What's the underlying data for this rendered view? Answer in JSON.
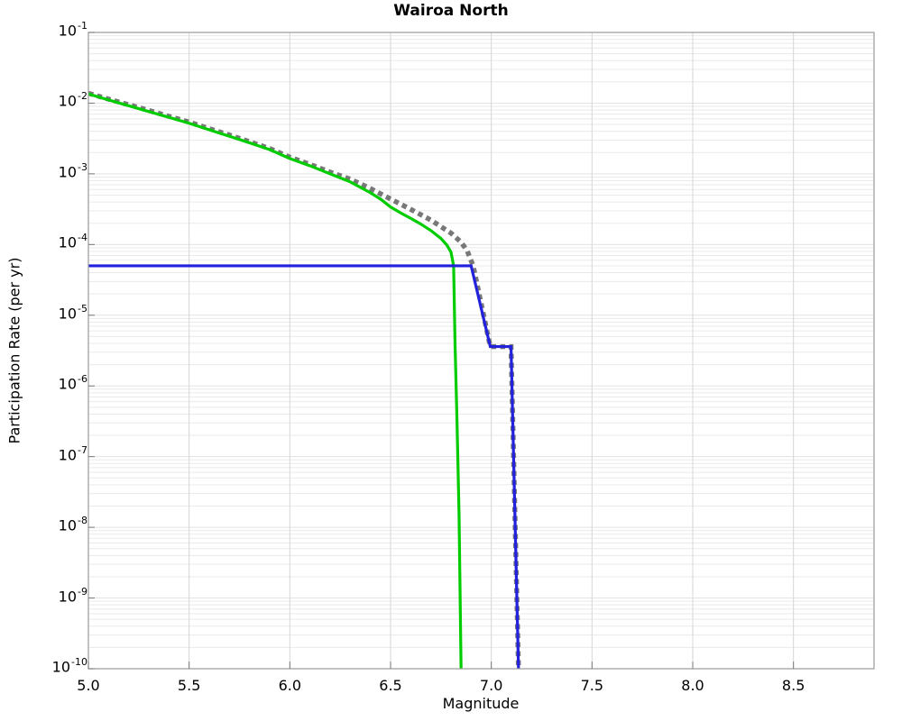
{
  "title": "Wairoa North",
  "axes": {
    "xlabel": "Magnitude",
    "ylabel": "Participation Rate (per yr)",
    "x_range": [
      5.0,
      8.9
    ],
    "y_range_exponents": [
      -1,
      -10
    ],
    "x_ticks": [
      {
        "value": 5.0,
        "label": "5.0"
      },
      {
        "value": 5.5,
        "label": "5.5"
      },
      {
        "value": 6.0,
        "label": "6.0"
      },
      {
        "value": 6.5,
        "label": "6.5"
      },
      {
        "value": 7.0,
        "label": "7.0"
      },
      {
        "value": 7.5,
        "label": "7.5"
      },
      {
        "value": 8.0,
        "label": "8.0"
      },
      {
        "value": 8.5,
        "label": "8.5"
      }
    ],
    "y_ticks": [
      {
        "exponent": -1,
        "base": "10",
        "sup": "-1"
      },
      {
        "exponent": -2,
        "base": "10",
        "sup": "-2"
      },
      {
        "exponent": -3,
        "base": "10",
        "sup": "-3"
      },
      {
        "exponent": -4,
        "base": "10",
        "sup": "-4"
      },
      {
        "exponent": -5,
        "base": "10",
        "sup": "-5"
      },
      {
        "exponent": -6,
        "base": "10",
        "sup": "-6"
      },
      {
        "exponent": -7,
        "base": "10",
        "sup": "-7"
      },
      {
        "exponent": -8,
        "base": "10",
        "sup": "-8"
      },
      {
        "exponent": -9,
        "base": "10",
        "sup": "-9"
      },
      {
        "exponent": -10,
        "base": "10",
        "sup": "-10"
      }
    ]
  },
  "colors": {
    "background": "#ffffff",
    "text": "#000000",
    "frame": "#9a9a9a",
    "tick": "#777777",
    "grid_vertical": "#d6d6d6",
    "grid_major_horizontal": "#e3e3e3",
    "grid_minor_horizontal": "#eaeaea",
    "series_gray": "#787878",
    "series_green": "#00cc00",
    "series_blue": "#2222dd"
  },
  "chart_data": {
    "type": "line",
    "title": "Wairoa North",
    "xlabel": "Magnitude",
    "ylabel": "Participation Rate (per yr)",
    "x_range": [
      5.0,
      8.9
    ],
    "y_range": [
      1e-10,
      0.1
    ],
    "y_scale": "log",
    "grid": true,
    "legend": false,
    "series": [
      {
        "name": "gray-dotted-total",
        "color": "#787878",
        "style": "dashed",
        "width": 5.5,
        "points": [
          [
            5.0,
            0.0138
          ],
          [
            5.1,
            0.0114
          ],
          [
            5.2,
            0.0095
          ],
          [
            5.3,
            0.0079
          ],
          [
            5.4,
            0.0065
          ],
          [
            5.5,
            0.0054
          ],
          [
            5.6,
            0.00435
          ],
          [
            5.7,
            0.00355
          ],
          [
            5.8,
            0.00285
          ],
          [
            5.9,
            0.00228
          ],
          [
            6.0,
            0.00172
          ],
          [
            6.1,
            0.00136
          ],
          [
            6.2,
            0.00106
          ],
          [
            6.3,
            0.00084
          ],
          [
            6.4,
            0.00062
          ],
          [
            6.5,
            0.00044
          ],
          [
            6.6,
            0.000315
          ],
          [
            6.7,
            0.000222
          ],
          [
            6.8,
            0.000145
          ],
          [
            6.85,
            0.000108
          ],
          [
            6.88,
            8.2e-05
          ],
          [
            6.91,
            5e-05
          ],
          [
            6.995,
            3.6e-06
          ],
          [
            7.098,
            3.6e-06
          ],
          [
            7.135,
            1e-10
          ]
        ]
      },
      {
        "name": "green-solid",
        "color": "#00cc00",
        "style": "solid",
        "width": 3.2,
        "points": [
          [
            5.0,
            0.0135
          ],
          [
            5.1,
            0.0111
          ],
          [
            5.2,
            0.0092
          ],
          [
            5.3,
            0.0076
          ],
          [
            5.4,
            0.0063
          ],
          [
            5.5,
            0.0052
          ],
          [
            5.6,
            0.0042
          ],
          [
            5.7,
            0.0034
          ],
          [
            5.8,
            0.00275
          ],
          [
            5.9,
            0.0022
          ],
          [
            6.0,
            0.00165
          ],
          [
            6.1,
            0.0013
          ],
          [
            6.2,
            0.001
          ],
          [
            6.3,
            0.00077
          ],
          [
            6.4,
            0.00054
          ],
          [
            6.45,
            0.00044
          ],
          [
            6.5,
            0.00034
          ],
          [
            6.55,
            0.00028
          ],
          [
            6.6,
            0.000235
          ],
          [
            6.65,
            0.000195
          ],
          [
            6.7,
            0.000158
          ],
          [
            6.75,
            0.000122
          ],
          [
            6.78,
            9.8e-05
          ],
          [
            6.8,
            7.8e-05
          ],
          [
            6.813,
            5e-05
          ],
          [
            6.82,
            4e-06
          ],
          [
            6.83,
            3e-07
          ],
          [
            6.84,
            1.5e-08
          ],
          [
            6.85,
            1e-10
          ]
        ]
      },
      {
        "name": "blue-solid",
        "color": "#2222dd",
        "style": "solid",
        "width": 3.2,
        "points": [
          [
            5.0,
            5e-05
          ],
          [
            6.9,
            5e-05
          ],
          [
            6.995,
            3.6e-06
          ],
          [
            7.098,
            3.6e-06
          ],
          [
            7.135,
            1e-10
          ]
        ]
      }
    ]
  }
}
